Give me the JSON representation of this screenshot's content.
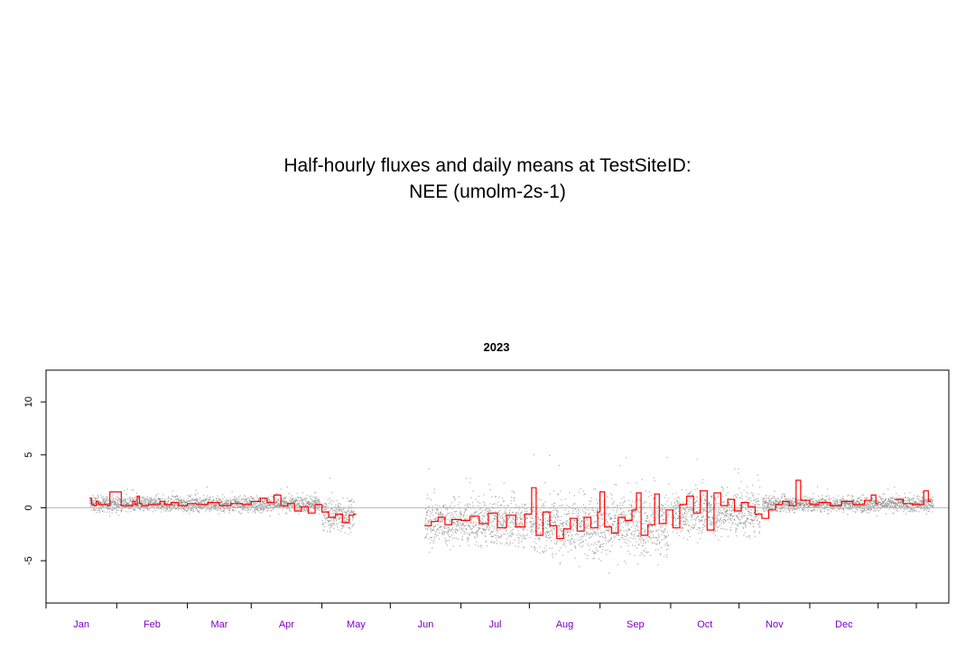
{
  "title_line1": "Half-hourly fluxes and daily means at TestSiteID:",
  "title_line2": "NEE (umolm-2s-1)",
  "chart_data": {
    "type": "scatter",
    "title": "2023",
    "xlabel": "",
    "ylabel": "",
    "xlim": [
      "2022-12-01",
      "2024-01-01"
    ],
    "ylim": [
      -9,
      13
    ],
    "y_ticks": [
      -5,
      0,
      5,
      10
    ],
    "x_tick_labels": [
      "Jan",
      "Feb",
      "Mar",
      "Apr",
      "May",
      "Jun",
      "Jul",
      "Aug",
      "Sep",
      "Oct",
      "Nov",
      "Dec"
    ],
    "x_tick_dates": [
      "2023-01-01",
      "2023-02-01",
      "2023-03-01",
      "2023-04-01",
      "2023-05-01",
      "2023-06-01",
      "2023-07-01",
      "2023-08-01",
      "2023-09-01",
      "2023-10-01",
      "2023-11-01",
      "2023-12-01"
    ],
    "reference_line": 0,
    "grid": false,
    "series": [
      {
        "kind": "half-hourly points",
        "color": "#808080",
        "segments": [
          {
            "start": "2022-12-20",
            "end": "2023-03-31",
            "mean": 0.4,
            "spread": 0.6
          },
          {
            "start": "2023-04-01",
            "end": "2023-04-15",
            "mean": -0.6,
            "spread": 1.3
          },
          {
            "start": "2023-05-16",
            "end": "2023-06-30",
            "mean": -1.3,
            "spread": 1.8
          },
          {
            "start": "2023-07-01",
            "end": "2023-08-31",
            "mean": -1.6,
            "spread": 2.4
          },
          {
            "start": "2023-09-01",
            "end": "2023-10-10",
            "mean": -0.4,
            "spread": 1.8
          },
          {
            "start": "2023-10-11",
            "end": "2023-12-25",
            "mean": 0.4,
            "spread": 0.6
          }
        ]
      },
      {
        "kind": "daily mean step line",
        "color": "#ff0000",
        "daily": [
          [
            "2022-12-20",
            0.9
          ],
          [
            "2022-12-21",
            0.3
          ],
          [
            "2022-12-22",
            0.2
          ],
          [
            "2022-12-23",
            0.6
          ],
          [
            "2022-12-24",
            0.3
          ],
          [
            "2022-12-28",
            0.2
          ],
          [
            "2022-12-29",
            1.5
          ],
          [
            "2023-01-03",
            0.2
          ],
          [
            "2023-01-08",
            0.6
          ],
          [
            "2023-01-09",
            0.3
          ],
          [
            "2023-01-10",
            1.1
          ],
          [
            "2023-01-11",
            0.4
          ],
          [
            "2023-01-12",
            0.2
          ],
          [
            "2023-01-15",
            0.3
          ],
          [
            "2023-01-20",
            0.6
          ],
          [
            "2023-01-22",
            0.3
          ],
          [
            "2023-01-25",
            0.5
          ],
          [
            "2023-01-28",
            0.2
          ],
          [
            "2023-02-01",
            0.4
          ],
          [
            "2023-02-05",
            0.3
          ],
          [
            "2023-02-10",
            0.5
          ],
          [
            "2023-02-15",
            0.2
          ],
          [
            "2023-02-20",
            0.4
          ],
          [
            "2023-02-25",
            0.3
          ],
          [
            "2023-03-01",
            0.6
          ],
          [
            "2023-03-05",
            0.9
          ],
          [
            "2023-03-08",
            0.5
          ],
          [
            "2023-03-11",
            1.2
          ],
          [
            "2023-03-14",
            0.2
          ],
          [
            "2023-03-17",
            0.4
          ],
          [
            "2023-03-20",
            -0.3
          ],
          [
            "2023-03-23",
            0.1
          ],
          [
            "2023-03-26",
            -0.5
          ],
          [
            "2023-03-29",
            0.3
          ],
          [
            "2023-04-01",
            -0.4
          ],
          [
            "2023-04-04",
            -0.9
          ],
          [
            "2023-04-07",
            -0.6
          ],
          [
            "2023-04-10",
            -1.4
          ],
          [
            "2023-04-13",
            -0.7
          ],
          [
            "2023-04-15",
            -0.6
          ],
          [
            "2023-05-16",
            -1.7
          ],
          [
            "2023-05-19",
            -1.3
          ],
          [
            "2023-05-22",
            -0.9
          ],
          [
            "2023-05-25",
            -1.6
          ],
          [
            "2023-05-28",
            -1.1
          ],
          [
            "2023-06-01",
            -1.2
          ],
          [
            "2023-06-05",
            -0.8
          ],
          [
            "2023-06-09",
            -1.5
          ],
          [
            "2023-06-13",
            -0.5
          ],
          [
            "2023-06-17",
            -1.9
          ],
          [
            "2023-06-21",
            -0.7
          ],
          [
            "2023-06-25",
            -1.8
          ],
          [
            "2023-06-29",
            -0.6
          ],
          [
            "2023-07-02",
            1.9
          ],
          [
            "2023-07-04",
            -2.6
          ],
          [
            "2023-07-07",
            -0.4
          ],
          [
            "2023-07-10",
            -1.7
          ],
          [
            "2023-07-13",
            -2.9
          ],
          [
            "2023-07-16",
            -2.0
          ],
          [
            "2023-07-19",
            -1.0
          ],
          [
            "2023-07-22",
            -2.2
          ],
          [
            "2023-07-25",
            -0.9
          ],
          [
            "2023-07-28",
            -1.9
          ],
          [
            "2023-07-31",
            -0.4
          ],
          [
            "2023-08-01",
            1.5
          ],
          [
            "2023-08-03",
            -1.8
          ],
          [
            "2023-08-06",
            -2.4
          ],
          [
            "2023-08-09",
            -0.9
          ],
          [
            "2023-08-12",
            -1.2
          ],
          [
            "2023-08-15",
            -0.2
          ],
          [
            "2023-08-17",
            1.4
          ],
          [
            "2023-08-19",
            -2.6
          ],
          [
            "2023-08-22",
            -1.6
          ],
          [
            "2023-08-25",
            1.3
          ],
          [
            "2023-08-27",
            -1.5
          ],
          [
            "2023-08-30",
            -0.2
          ],
          [
            "2023-09-02",
            -1.9
          ],
          [
            "2023-09-05",
            0.3
          ],
          [
            "2023-09-08",
            1.1
          ],
          [
            "2023-09-11",
            -0.5
          ],
          [
            "2023-09-14",
            1.6
          ],
          [
            "2023-09-17",
            -2.1
          ],
          [
            "2023-09-20",
            1.4
          ],
          [
            "2023-09-23",
            0.2
          ],
          [
            "2023-09-26",
            0.8
          ],
          [
            "2023-09-29",
            -0.3
          ],
          [
            "2023-10-02",
            0.5
          ],
          [
            "2023-10-05",
            0.1
          ],
          [
            "2023-10-08",
            -0.6
          ],
          [
            "2023-10-11",
            -1.0
          ],
          [
            "2023-10-14",
            -0.2
          ],
          [
            "2023-10-17",
            0.3
          ],
          [
            "2023-10-20",
            0.6
          ],
          [
            "2023-10-23",
            0.2
          ],
          [
            "2023-10-26",
            2.6
          ],
          [
            "2023-10-28",
            0.7
          ],
          [
            "2023-11-01",
            0.3
          ],
          [
            "2023-11-05",
            0.5
          ],
          [
            "2023-11-10",
            0.2
          ],
          [
            "2023-11-15",
            0.6
          ],
          [
            "2023-11-20",
            0.3
          ],
          [
            "2023-11-25",
            0.7
          ],
          [
            "2023-11-28",
            1.2
          ],
          [
            "2023-11-30",
            0.4
          ],
          [
            "2023-12-08",
            0.8
          ],
          [
            "2023-12-12",
            0.4
          ],
          [
            "2023-12-16",
            0.3
          ],
          [
            "2023-12-21",
            1.6
          ],
          [
            "2023-12-23",
            0.6
          ]
        ]
      }
    ]
  }
}
